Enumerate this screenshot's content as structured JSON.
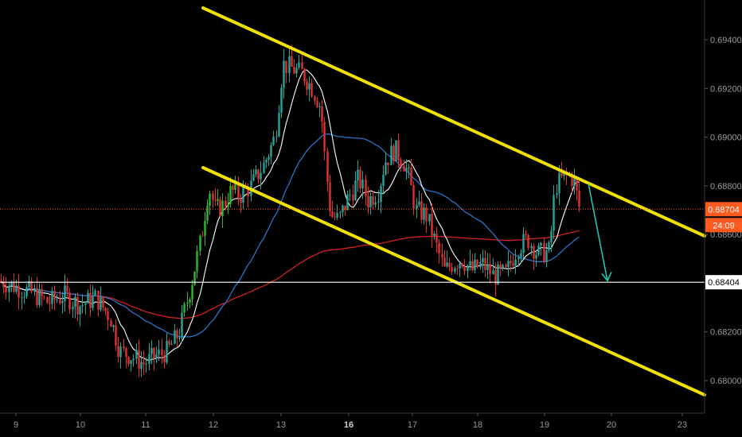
{
  "chart_data": {
    "type": "candlestick",
    "instrument_hint": "",
    "colors": {
      "background": "#000000",
      "bull": "#26a69a",
      "bullBright": "#2eb82e",
      "bear": "#e03030",
      "channel": "#f0e000",
      "price_line": "#ff5a1f",
      "support": "#ffffff",
      "ma_fast": "#ffffff",
      "ma_mid": "#2b7bd6",
      "ma_slow": "#d02020",
      "arrow": "#18d0b8",
      "axis_text": "#9a9a9a"
    },
    "y_axis": {
      "min": 0.6788,
      "max": 0.6956,
      "ticks": [
        "0.68000",
        "0.68200",
        "0.68400",
        "0.68600",
        "0.68800",
        "0.69000",
        "0.69200",
        "0.69400"
      ]
    },
    "x_axis": {
      "ticks": [
        "9",
        "10",
        "11",
        "12",
        "13",
        "16",
        "17",
        "18",
        "19",
        "20",
        "23"
      ],
      "bold": [
        "16"
      ]
    },
    "current_price": {
      "label": "0.68704",
      "value": 0.68704,
      "countdown": "24:09"
    },
    "support_level": {
      "label": "0.68404",
      "value": 0.68404
    },
    "channel_upper": {
      "from": {
        "x": 0,
        "y": 0.695
      },
      "to": {
        "x": 0,
        "y": 0.6864
      }
    },
    "channel_lower": {
      "from": {
        "x": 0,
        "y": 0.6888
      },
      "to": {
        "x": 0,
        "y": 0.6794
      }
    },
    "arrow": {
      "from": 0.6881,
      "to": 0.6841
    }
  }
}
